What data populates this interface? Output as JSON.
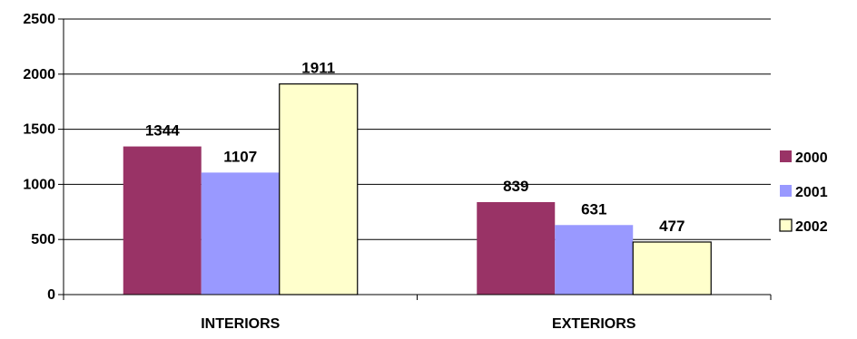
{
  "chart_data": {
    "type": "bar",
    "categories": [
      "INTERIORS",
      "EXTERIORS"
    ],
    "series": [
      {
        "name": "2000",
        "values": [
          1344,
          839
        ],
        "color": "#993366"
      },
      {
        "name": "2001",
        "values": [
          1107,
          631
        ],
        "color": "#9999FF"
      },
      {
        "name": "2002",
        "values": [
          1911,
          477
        ],
        "color": "#FFFFCC"
      }
    ],
    "ylim": [
      0,
      2500
    ],
    "yticks": [
      0,
      500,
      1000,
      1500,
      2000,
      2500
    ],
    "grid": true,
    "legend_position": "right",
    "data_labels": true
  }
}
